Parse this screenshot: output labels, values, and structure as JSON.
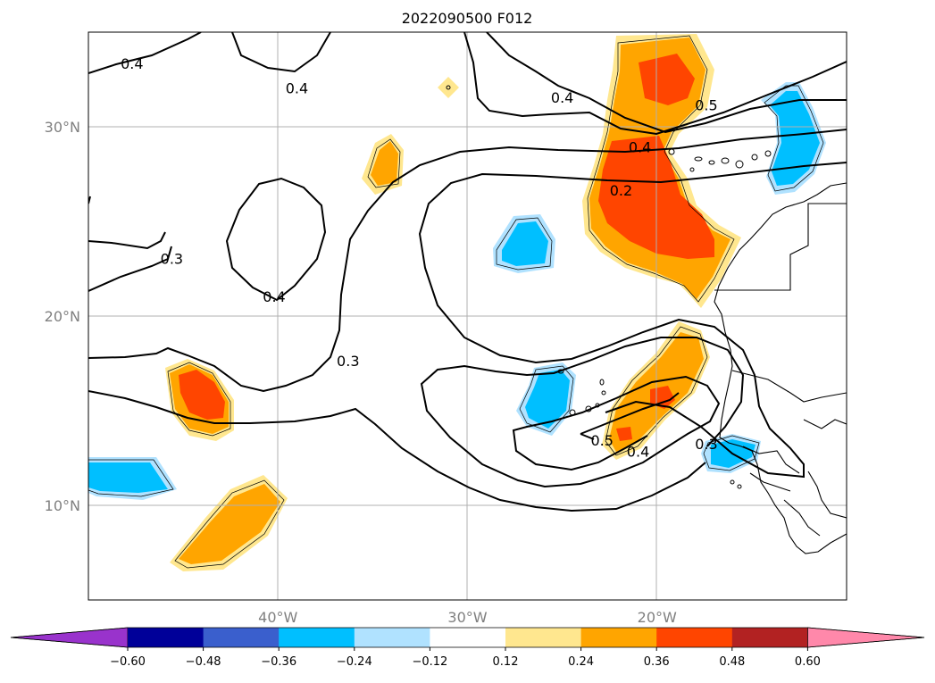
{
  "title": "2022090500 F012",
  "map": {
    "lon_range": [
      -50,
      -10
    ],
    "lat_range": [
      5,
      35
    ],
    "lon_ticks": [
      {
        "value": -40,
        "label": "40°W"
      },
      {
        "value": -30,
        "label": "30°W"
      },
      {
        "value": -20,
        "label": "20°W"
      }
    ],
    "lat_ticks": [
      {
        "value": 30,
        "label": "30°N"
      },
      {
        "value": 20,
        "label": "20°N"
      },
      {
        "value": 10,
        "label": "10°N"
      }
    ],
    "gridlines": true,
    "coastline_color": "#000000"
  },
  "contour_labels": [
    {
      "text": "0.4",
      "lon": -47.7,
      "lat": 33.3
    },
    {
      "text": "0.4",
      "lon": -39.0,
      "lat": 32.0
    },
    {
      "text": "0.4",
      "lon": -25.0,
      "lat": 31.5
    },
    {
      "text": "0.5",
      "lon": -17.4,
      "lat": 31.1
    },
    {
      "text": "0.4",
      "lon": -20.9,
      "lat": 28.9
    },
    {
      "text": "0.2",
      "lon": -21.9,
      "lat": 26.6
    },
    {
      "text": "0.3",
      "lon": -45.6,
      "lat": 23.0
    },
    {
      "text": "0.4",
      "lon": -40.2,
      "lat": 21.0
    },
    {
      "text": "0.3",
      "lon": -36.3,
      "lat": 17.6
    },
    {
      "text": "0.5",
      "lon": -22.9,
      "lat": 13.4
    },
    {
      "text": "0.4",
      "lon": -21.0,
      "lat": 12.8
    },
    {
      "text": "0.3",
      "lon": -17.4,
      "lat": 13.2
    }
  ],
  "colorbar": {
    "ticks": [
      "−0.60",
      "−0.48",
      "−0.36",
      "−0.24",
      "−0.12",
      "0.12",
      "0.24",
      "0.36",
      "0.48",
      "0.60"
    ],
    "under_color": "#9933cc",
    "over_color": "#ff88aa",
    "colors": [
      "#000099",
      "#3a5fcd",
      "#00bfff",
      "#b0e2ff",
      "#ffffff",
      "#ffe78f",
      "#ffa500",
      "#ff4500",
      "#b22222"
    ]
  },
  "palette": {
    "light_yellow": "#ffe78f",
    "orange": "#ffa500",
    "red_orange": "#ff4500",
    "sky_blue": "#00bfff",
    "light_blue": "#b0e2ff"
  }
}
